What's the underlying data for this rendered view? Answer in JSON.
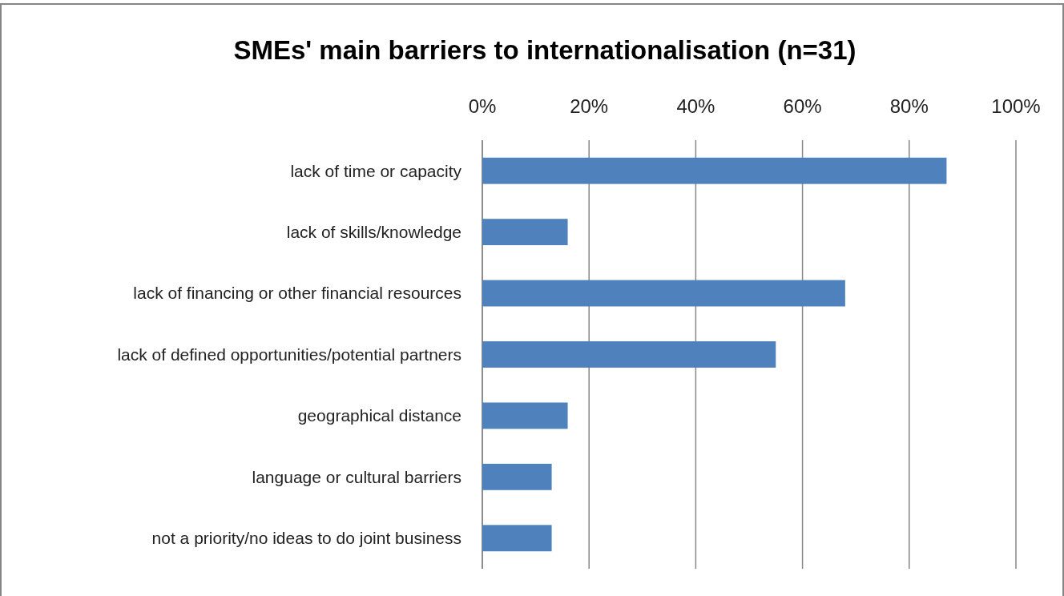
{
  "chart_data": {
    "type": "bar",
    "orientation": "horizontal",
    "title": "SMEs' main barriers to internationalisation (n=31)",
    "categories": [
      "lack of time or capacity",
      "lack of skills/knowledge",
      "lack of financing or other financial resources",
      "lack of defined opportunities/potential partners",
      "geographical distance",
      "language or cultural barriers",
      "not a priority/no ideas to do joint business"
    ],
    "values": [
      87,
      16,
      68,
      55,
      16,
      13,
      13
    ],
    "color": "#4f81bd",
    "xlim": [
      0,
      100
    ],
    "xticks": [
      {
        "value": 0,
        "label": "0%"
      },
      {
        "value": 20,
        "label": "20%"
      },
      {
        "value": 40,
        "label": "40%"
      },
      {
        "value": 60,
        "label": "60%"
      },
      {
        "value": 80,
        "label": "80%"
      },
      {
        "value": 100,
        "label": "100%"
      }
    ],
    "grid": "x"
  }
}
